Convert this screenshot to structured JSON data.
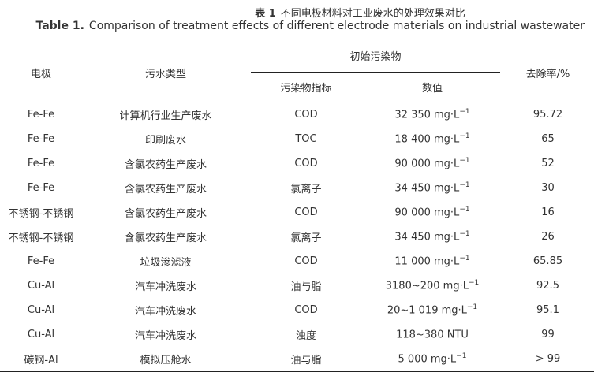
{
  "caption": {
    "zh_label": "表 1",
    "zh_title": "不同电极材料对工业废水的处理效果对比",
    "en_label": "Table 1.",
    "en_title": "Comparison of treatment effects of different electrode materials on industrial wastewater"
  },
  "headers": {
    "electrode": "电极",
    "wastewater_type": "污水类型",
    "initial_pollutant": "初始污染物",
    "indicator": "污染物指标",
    "value": "数值",
    "removal_rate": "去除率/%"
  },
  "rows": [
    {
      "electrode": "Fe-Fe",
      "type": "计算机行业生产废水",
      "indicator": "COD",
      "value": "32 350 mg·L",
      "exp": "−1",
      "rate": "95.72"
    },
    {
      "electrode": "Fe-Fe",
      "type": "印刷废水",
      "indicator": "TOC",
      "value": "18 400 mg·L",
      "exp": "−1",
      "rate": "65"
    },
    {
      "electrode": "Fe-Fe",
      "type": "含氯农药生产废水",
      "indicator": "COD",
      "value": "90 000 mg·L",
      "exp": "−1",
      "rate": "52"
    },
    {
      "electrode": "Fe-Fe",
      "type": "含氯农药生产废水",
      "indicator": "氯离子",
      "value": "34 450 mg·L",
      "exp": "−1",
      "rate": "30"
    },
    {
      "electrode": "不锈钢-不锈钢",
      "type": "含氯农药生产废水",
      "indicator": "COD",
      "value": "90 000 mg·L",
      "exp": "−1",
      "rate": "16"
    },
    {
      "electrode": "不锈钢-不锈钢",
      "type": "含氯农药生产废水",
      "indicator": "氯离子",
      "value": "34 450 mg·L",
      "exp": "−1",
      "rate": "26"
    },
    {
      "electrode": "Fe-Fe",
      "type": "垃圾渗滤液",
      "indicator": "COD",
      "value": "11 000 mg·L",
      "exp": "−1",
      "rate": "65.85"
    },
    {
      "electrode": "Cu-Al",
      "type": "汽车冲洗废水",
      "indicator": "油与脂",
      "value": "3180~200 mg·L",
      "exp": "−1",
      "rate": "92.5"
    },
    {
      "electrode": "Cu-Al",
      "type": "汽车冲洗废水",
      "indicator": "COD",
      "value": "20~1 019 mg·L",
      "exp": "−1",
      "rate": "95.1"
    },
    {
      "electrode": "Cu-Al",
      "type": "汽车冲洗废水",
      "indicator": "浊度",
      "value": "118~380 NTU",
      "exp": "",
      "rate": "99"
    },
    {
      "electrode": "碳钢-Al",
      "type": "模拟压舱水",
      "indicator": "油与脂",
      "value": "5 000 mg·L",
      "exp": "−1",
      "rate": "> 99"
    }
  ]
}
